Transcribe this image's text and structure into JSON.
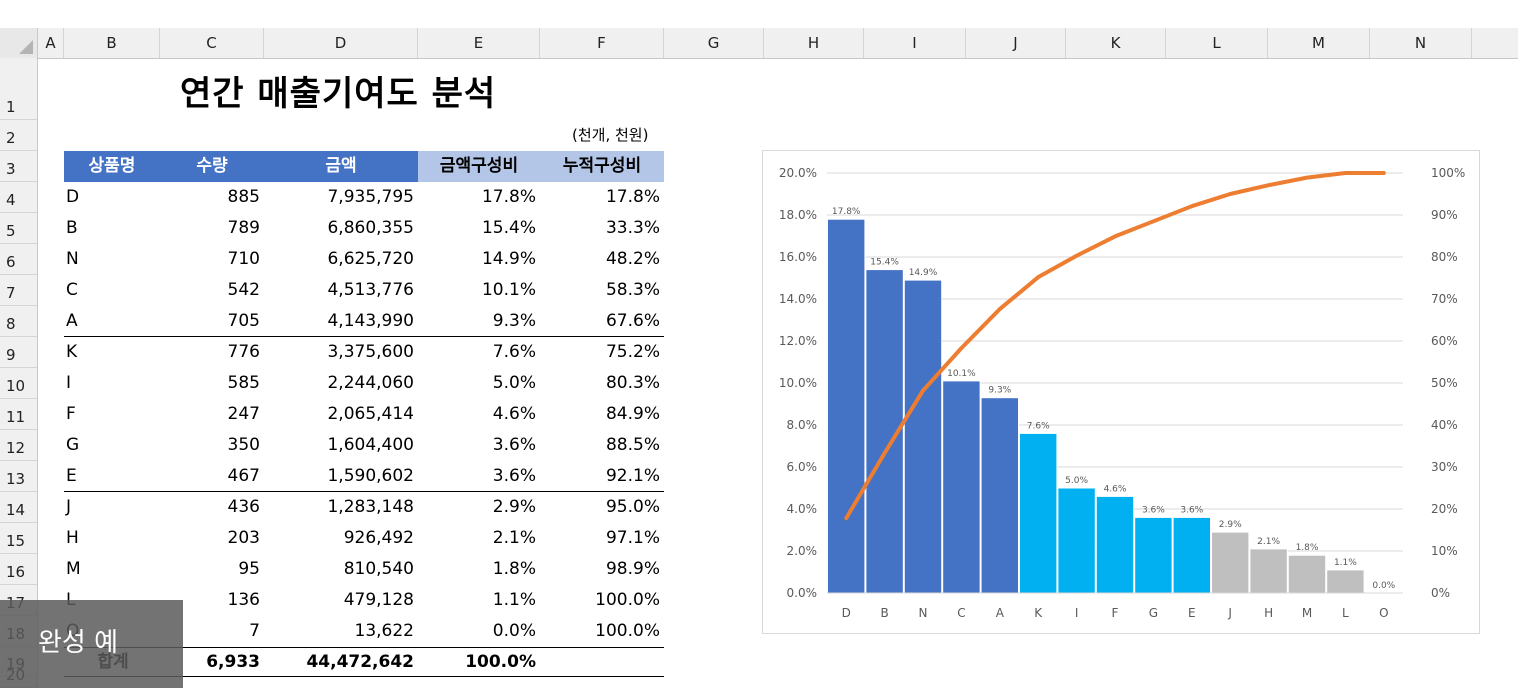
{
  "sheet": {
    "columns": [
      "A",
      "B",
      "C",
      "D",
      "E",
      "F",
      "G",
      "H",
      "I",
      "J",
      "K",
      "L",
      "M",
      "N"
    ],
    "rows": [
      "1",
      "2",
      "3",
      "4",
      "5",
      "6",
      "7",
      "8",
      "9",
      "10",
      "11",
      "12",
      "13",
      "14",
      "15",
      "16",
      "17",
      "18",
      "19",
      "20"
    ],
    "title": "연간 매출기여도 분석",
    "unit_note": "(천개, 천원)",
    "table": {
      "headers": [
        "상품명",
        "수량",
        "금액",
        "금액구성비",
        "누적구성비"
      ],
      "rows": [
        [
          "D",
          "885",
          "7,935,795",
          "17.8%",
          "17.8%"
        ],
        [
          "B",
          "789",
          "6,860,355",
          "15.4%",
          "33.3%"
        ],
        [
          "N",
          "710",
          "6,625,720",
          "14.9%",
          "48.2%"
        ],
        [
          "C",
          "542",
          "4,513,776",
          "10.1%",
          "58.3%"
        ],
        [
          "A",
          "705",
          "4,143,990",
          "9.3%",
          "67.6%"
        ],
        [
          "K",
          "776",
          "3,375,600",
          "7.6%",
          "75.2%"
        ],
        [
          "I",
          "585",
          "2,244,060",
          "5.0%",
          "80.3%"
        ],
        [
          "F",
          "247",
          "2,065,414",
          "4.6%",
          "84.9%"
        ],
        [
          "G",
          "350",
          "1,604,400",
          "3.6%",
          "88.5%"
        ],
        [
          "E",
          "467",
          "1,590,602",
          "3.6%",
          "92.1%"
        ],
        [
          "J",
          "436",
          "1,283,148",
          "2.9%",
          "95.0%"
        ],
        [
          "H",
          "203",
          "926,492",
          "2.1%",
          "97.1%"
        ],
        [
          "M",
          "95",
          "810,540",
          "1.8%",
          "98.9%"
        ],
        [
          "L",
          "136",
          "479,128",
          "1.1%",
          "100.0%"
        ],
        [
          "O",
          "7",
          "13,622",
          "0.0%",
          "100.0%"
        ]
      ],
      "total": [
        "합계",
        "6,933",
        "44,472,642",
        "100.0%",
        ""
      ]
    }
  },
  "overlay": {
    "text": "완성 예"
  },
  "colors": {
    "group_a": "#4472c4",
    "group_b": "#00b0f0",
    "group_c": "#bfbfbf",
    "line": "#ed7d31"
  },
  "chart_data": {
    "type": "bar",
    "categories": [
      "D",
      "B",
      "N",
      "C",
      "A",
      "K",
      "I",
      "F",
      "G",
      "E",
      "J",
      "H",
      "M",
      "L",
      "O"
    ],
    "series": [
      {
        "values": [
          17.8,
          15.4,
          14.9,
          10.1,
          9.3,
          7.6,
          5.0,
          4.6,
          3.6,
          3.6,
          2.9,
          2.1,
          1.8,
          1.1,
          0.0
        ],
        "labels": [
          "17.8%",
          "15.4%",
          "14.9%",
          "10.1%",
          "9.3%",
          "7.6%",
          "5.0%",
          "4.6%",
          "3.6%",
          "3.6%",
          "2.9%",
          "2.1%",
          "1.8%",
          "1.1%",
          "0.0%"
        ],
        "groups": [
          "a",
          "a",
          "a",
          "a",
          "a",
          "b",
          "b",
          "b",
          "b",
          "b",
          "c",
          "c",
          "c",
          "c",
          "c"
        ]
      },
      {
        "type": "line",
        "axis": "right",
        "values": [
          17.8,
          33.3,
          48.2,
          58.3,
          67.6,
          75.2,
          80.3,
          84.9,
          88.5,
          92.1,
          95.0,
          97.1,
          98.9,
          100.0,
          100.0
        ]
      }
    ],
    "y_left": {
      "min": 0,
      "max": 20,
      "ticks": [
        "0.0%",
        "2.0%",
        "4.0%",
        "6.0%",
        "8.0%",
        "10.0%",
        "12.0%",
        "14.0%",
        "16.0%",
        "18.0%",
        "20.0%"
      ]
    },
    "y_right": {
      "min": 0,
      "max": 100,
      "ticks": [
        "0%",
        "10%",
        "20%",
        "30%",
        "40%",
        "50%",
        "60%",
        "70%",
        "80%",
        "90%",
        "100%"
      ]
    },
    "grid": true,
    "legend": "none"
  }
}
